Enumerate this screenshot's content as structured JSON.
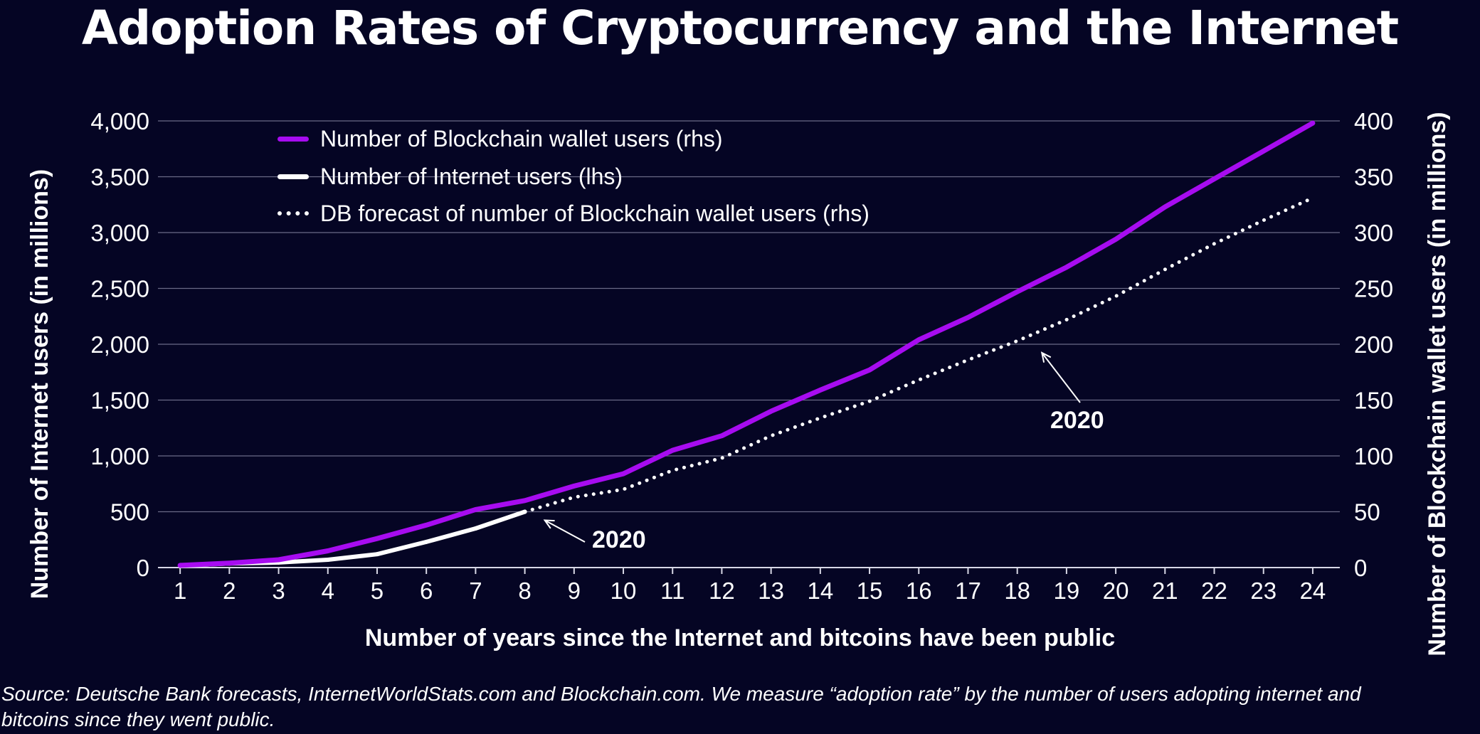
{
  "title": "Adoption Rates of Cryptocurrency and the Internet",
  "colors": {
    "background": "#050524",
    "blockchain": "#a70cf0",
    "internet": "#ffffff",
    "forecast": "#ffffff",
    "grid": "#6a6a86"
  },
  "chart_data": {
    "type": "line",
    "title": "Adoption Rates of Cryptocurrency and the Internet",
    "xlabel": "Number of years since the Internet and bitcoins have been public",
    "ylabel_left": "Number of Internet users (in millions)",
    "ylabel_right": "Number of Blockchain wallet users (in millions)",
    "x": [
      1,
      2,
      3,
      4,
      5,
      6,
      7,
      8,
      9,
      10,
      11,
      12,
      13,
      14,
      15,
      16,
      17,
      18,
      19,
      20,
      21,
      22,
      23,
      24
    ],
    "ylim_left": [
      0,
      4000
    ],
    "ylim_right": [
      0,
      400
    ],
    "yticks_left": [
      "0",
      "500",
      "1,000",
      "1,500",
      "2,000",
      "2,500",
      "3,000",
      "3,500",
      "4,000"
    ],
    "yticks_right": [
      "0",
      "50",
      "100",
      "150",
      "200",
      "250",
      "300",
      "350",
      "400"
    ],
    "series": [
      {
        "name": "Number of Blockchain wallet users (rhs)",
        "axis": "right",
        "style": "solid",
        "color": "#a70cf0",
        "x": [
          1,
          2,
          3,
          4,
          5,
          6,
          7,
          8,
          9,
          10,
          11,
          12,
          13,
          14,
          15,
          16,
          17,
          18,
          19,
          20,
          21,
          22,
          23,
          24
        ],
        "values": [
          2,
          4,
          7,
          15,
          26,
          38,
          52,
          60,
          73,
          84,
          105,
          118,
          140,
          159,
          177,
          204,
          224,
          247,
          269,
          294,
          323,
          348,
          373,
          398
        ]
      },
      {
        "name": "Number of Internet users (lhs)",
        "axis": "left",
        "style": "solid",
        "color": "#ffffff",
        "x": [
          1,
          2,
          3,
          4,
          5,
          6,
          7,
          8
        ],
        "values": [
          16,
          36,
          45,
          70,
          120,
          230,
          350,
          500
        ]
      },
      {
        "name": "DB forecast of number of Blockchain wallet users (rhs)",
        "axis": "right",
        "style": "dotted",
        "color": "#ffffff",
        "x": [
          8,
          9,
          10,
          11,
          12,
          13,
          14,
          15,
          16,
          17,
          18,
          19,
          20,
          21,
          22,
          23,
          24
        ],
        "values": [
          50,
          63,
          70,
          87,
          98,
          118,
          134,
          149,
          168,
          186,
          203,
          222,
          243,
          267,
          290,
          311,
          331
        ]
      }
    ],
    "annotations": [
      {
        "text": "2020",
        "series": "Number of Internet users (lhs)",
        "x": 8
      },
      {
        "text": "2020",
        "series": "DB forecast of number of Blockchain wallet users (rhs)",
        "x": 18.5
      }
    ],
    "legend": "top-left",
    "grid": true
  },
  "source": "Source: Deutsche Bank forecasts, InternetWorldStats.com and Blockchain.com. We measure “adoption rate” by the number of users adopting internet and bitcoins since they went public."
}
